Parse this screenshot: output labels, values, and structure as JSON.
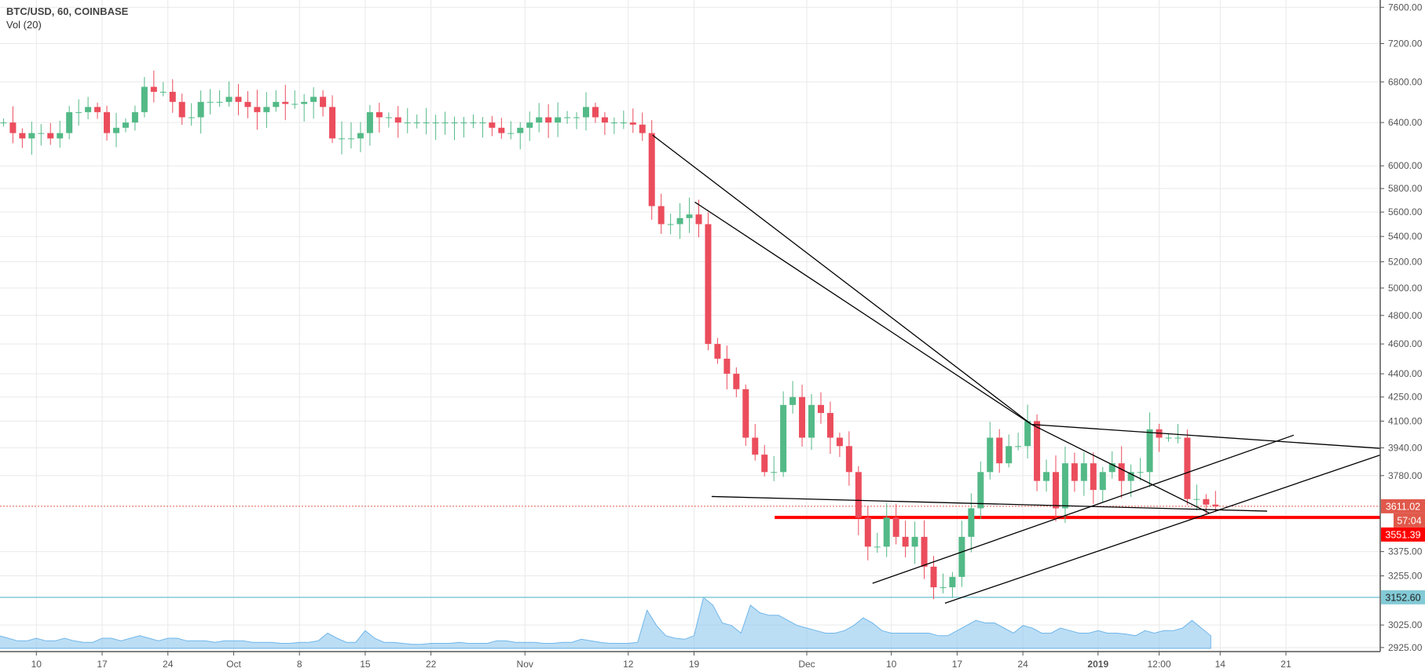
{
  "header": {
    "symbol": "BTC/USD, 60, COINBASE",
    "indicator": "Vol (20)"
  },
  "chart_data": {
    "type": "candlestick",
    "y_scale": "log",
    "grid": true,
    "ylim": [
      2925,
      7600
    ],
    "xlim": [
      "2018-09-06",
      "2019-02-04"
    ],
    "y_ticks": [
      "7600.00",
      "7200.00",
      "6800.00",
      "6400.00",
      "6000.00",
      "5800.00",
      "5600.00",
      "5400.00",
      "5200.00",
      "5000.00",
      "4800.00",
      "4600.00",
      "4400.00",
      "4250.00",
      "4100.00",
      "3940.00",
      "3780.00",
      "3375.00",
      "3255.00",
      "3025.00",
      "2925.00"
    ],
    "x_ticks": [
      {
        "label": "10",
        "date": "2018-09-10"
      },
      {
        "label": "17",
        "date": "2018-09-17"
      },
      {
        "label": "24",
        "date": "2018-09-24"
      },
      {
        "label": "Oct",
        "date": "2018-10-01"
      },
      {
        "label": "8",
        "date": "2018-10-08"
      },
      {
        "label": "15",
        "date": "2018-10-15"
      },
      {
        "label": "22",
        "date": "2018-10-22"
      },
      {
        "label": "Nov",
        "date": "2018-11-01"
      },
      {
        "label": "12",
        "date": "2018-11-12"
      },
      {
        "label": "19",
        "date": "2018-11-19"
      },
      {
        "label": "Dec",
        "date": "2018-12-01"
      },
      {
        "label": "10",
        "date": "2018-12-10"
      },
      {
        "label": "17",
        "date": "2018-12-17"
      },
      {
        "label": "24",
        "date": "2018-12-24"
      },
      {
        "label": "2019",
        "date": "2019-01-01"
      },
      {
        "label": "12:00",
        "date": "2019-01-07T12:00"
      },
      {
        "label": "14",
        "date": "2019-01-14"
      },
      {
        "label": "21",
        "date": "2019-01-21"
      }
    ],
    "series_fields": [
      "date",
      "close",
      "volume_relative"
    ],
    "series": [
      [
        "2018-09-06",
        6400,
        0.25
      ],
      [
        "2018-09-07",
        6300,
        0.2
      ],
      [
        "2018-09-08",
        6250,
        0.15
      ],
      [
        "2018-09-09",
        6300,
        0.15
      ],
      [
        "2018-09-10",
        6300,
        0.2
      ],
      [
        "2018-09-11",
        6250,
        0.15
      ],
      [
        "2018-09-12",
        6300,
        0.15
      ],
      [
        "2018-09-13",
        6500,
        0.2
      ],
      [
        "2018-09-14",
        6500,
        0.15
      ],
      [
        "2018-09-15",
        6550,
        0.12
      ],
      [
        "2018-09-16",
        6500,
        0.12
      ],
      [
        "2018-09-17",
        6300,
        0.2
      ],
      [
        "2018-09-18",
        6350,
        0.2
      ],
      [
        "2018-09-19",
        6400,
        0.15
      ],
      [
        "2018-09-20",
        6500,
        0.2
      ],
      [
        "2018-09-21",
        6750,
        0.25
      ],
      [
        "2018-09-22",
        6700,
        0.2
      ],
      [
        "2018-09-23",
        6700,
        0.15
      ],
      [
        "2018-09-24",
        6600,
        0.2
      ],
      [
        "2018-09-25",
        6450,
        0.2
      ],
      [
        "2018-09-26",
        6450,
        0.15
      ],
      [
        "2018-09-27",
        6600,
        0.15
      ],
      [
        "2018-09-28",
        6600,
        0.15
      ],
      [
        "2018-09-29",
        6600,
        0.12
      ],
      [
        "2018-09-30",
        6650,
        0.15
      ],
      [
        "2018-10-01",
        6600,
        0.15
      ],
      [
        "2018-10-02",
        6550,
        0.15
      ],
      [
        "2018-10-03",
        6500,
        0.12
      ],
      [
        "2018-10-04",
        6550,
        0.12
      ],
      [
        "2018-10-05",
        6600,
        0.12
      ],
      [
        "2018-10-06",
        6580,
        0.1
      ],
      [
        "2018-10-07",
        6580,
        0.1
      ],
      [
        "2018-10-08",
        6600,
        0.12
      ],
      [
        "2018-10-09",
        6650,
        0.12
      ],
      [
        "2018-10-10",
        6550,
        0.15
      ],
      [
        "2018-10-11",
        6250,
        0.3
      ],
      [
        "2018-10-12",
        6250,
        0.2
      ],
      [
        "2018-10-13",
        6250,
        0.12
      ],
      [
        "2018-10-14",
        6300,
        0.12
      ],
      [
        "2018-10-15",
        6500,
        0.35
      ],
      [
        "2018-10-16",
        6450,
        0.2
      ],
      [
        "2018-10-17",
        6450,
        0.12
      ],
      [
        "2018-10-18",
        6400,
        0.12
      ],
      [
        "2018-10-19",
        6400,
        0.1
      ],
      [
        "2018-10-20",
        6400,
        0.08
      ],
      [
        "2018-10-21",
        6400,
        0.08
      ],
      [
        "2018-10-22",
        6400,
        0.1
      ],
      [
        "2018-10-23",
        6400,
        0.1
      ],
      [
        "2018-10-24",
        6400,
        0.1
      ],
      [
        "2018-10-25",
        6400,
        0.12
      ],
      [
        "2018-10-26",
        6400,
        0.1
      ],
      [
        "2018-10-27",
        6400,
        0.1
      ],
      [
        "2018-10-28",
        6350,
        0.1
      ],
      [
        "2018-10-29",
        6300,
        0.15
      ],
      [
        "2018-10-30",
        6300,
        0.15
      ],
      [
        "2018-10-31",
        6350,
        0.12
      ],
      [
        "2018-11-01",
        6400,
        0.12
      ],
      [
        "2018-11-02",
        6450,
        0.12
      ],
      [
        "2018-11-03",
        6400,
        0.1
      ],
      [
        "2018-11-04",
        6450,
        0.1
      ],
      [
        "2018-11-05",
        6450,
        0.12
      ],
      [
        "2018-11-06",
        6450,
        0.12
      ],
      [
        "2018-11-07",
        6550,
        0.18
      ],
      [
        "2018-11-08",
        6450,
        0.15
      ],
      [
        "2018-11-09",
        6400,
        0.12
      ],
      [
        "2018-11-10",
        6400,
        0.1
      ],
      [
        "2018-11-11",
        6400,
        0.1
      ],
      [
        "2018-11-12",
        6380,
        0.1
      ],
      [
        "2018-11-13",
        6300,
        0.12
      ],
      [
        "2018-11-14",
        5650,
        0.75
      ],
      [
        "2018-11-15",
        5500,
        0.45
      ],
      [
        "2018-11-16",
        5500,
        0.25
      ],
      [
        "2018-11-17",
        5550,
        0.2
      ],
      [
        "2018-11-18",
        5580,
        0.18
      ],
      [
        "2018-11-19",
        5500,
        0.25
      ],
      [
        "2018-11-20",
        4600,
        1.0
      ],
      [
        "2018-11-21",
        4500,
        0.85
      ],
      [
        "2018-11-22",
        4400,
        0.5
      ],
      [
        "2018-11-23",
        4300,
        0.45
      ],
      [
        "2018-11-24",
        4000,
        0.3
      ],
      [
        "2018-11-25",
        3900,
        0.85
      ],
      [
        "2018-11-26",
        3800,
        0.7
      ],
      [
        "2018-11-27",
        3800,
        0.65
      ],
      [
        "2018-11-28",
        4200,
        0.65
      ],
      [
        "2018-11-29",
        4250,
        0.55
      ],
      [
        "2018-11-30",
        4000,
        0.45
      ],
      [
        "2018-12-01",
        4200,
        0.4
      ],
      [
        "2018-12-02",
        4150,
        0.35
      ],
      [
        "2018-12-03",
        4000,
        0.3
      ],
      [
        "2018-12-04",
        3950,
        0.3
      ],
      [
        "2018-12-05",
        3800,
        0.35
      ],
      [
        "2018-12-06",
        3550,
        0.45
      ],
      [
        "2018-12-07",
        3400,
        0.6
      ],
      [
        "2018-12-08",
        3400,
        0.5
      ],
      [
        "2018-12-09",
        3550,
        0.35
      ],
      [
        "2018-12-10",
        3450,
        0.3
      ],
      [
        "2018-12-11",
        3400,
        0.3
      ],
      [
        "2018-12-12",
        3450,
        0.3
      ],
      [
        "2018-12-13",
        3300,
        0.3
      ],
      [
        "2018-12-14",
        3200,
        0.3
      ],
      [
        "2018-12-15",
        3200,
        0.25
      ],
      [
        "2018-12-16",
        3250,
        0.25
      ],
      [
        "2018-12-17",
        3450,
        0.35
      ],
      [
        "2018-12-18",
        3600,
        0.45
      ],
      [
        "2018-12-19",
        3800,
        0.55
      ],
      [
        "2018-12-20",
        4000,
        0.5
      ],
      [
        "2018-12-21",
        3850,
        0.5
      ],
      [
        "2018-12-22",
        3950,
        0.4
      ],
      [
        "2018-12-23",
        3950,
        0.3
      ],
      [
        "2018-12-24",
        4100,
        0.45
      ],
      [
        "2018-12-25",
        3750,
        0.4
      ],
      [
        "2018-12-26",
        3800,
        0.3
      ],
      [
        "2018-12-27",
        3600,
        0.3
      ],
      [
        "2018-12-28",
        3850,
        0.4
      ],
      [
        "2018-12-29",
        3750,
        0.35
      ],
      [
        "2018-12-30",
        3850,
        0.3
      ],
      [
        "2018-12-31",
        3700,
        0.3
      ],
      [
        "2019-01-01",
        3800,
        0.35
      ],
      [
        "2019-01-02",
        3850,
        0.3
      ],
      [
        "2019-01-03",
        3750,
        0.3
      ],
      [
        "2019-01-04",
        3800,
        0.28
      ],
      [
        "2019-01-05",
        3800,
        0.25
      ],
      [
        "2019-01-06",
        4050,
        0.35
      ],
      [
        "2019-01-07",
        4000,
        0.3
      ],
      [
        "2019-01-08",
        4000,
        0.35
      ],
      [
        "2019-01-09",
        4000,
        0.35
      ],
      [
        "2019-01-10",
        3650,
        0.4
      ],
      [
        "2019-01-11",
        3650,
        0.55
      ],
      [
        "2019-01-12",
        3620,
        0.4
      ],
      [
        "2019-01-13",
        3611.02,
        0.25
      ]
    ],
    "trend_lines": [
      {
        "from": [
          "2018-11-14T14:00",
          6281
        ],
        "to": [
          "2018-12-24T22:00",
          4080
        ]
      },
      {
        "from": [
          "2018-11-19T02:00",
          5684
        ],
        "to": [
          "2018-12-24T22:00",
          4080
        ]
      },
      {
        "from": [
          "2018-12-24T22:00",
          4080
        ],
        "to": [
          "2019-01-12T19:00",
          3576
        ]
      },
      {
        "from": [
          "2018-12-24T22:00",
          4080
        ],
        "to": [
          "2019-01-31T00:00",
          3937
        ]
      },
      {
        "from": [
          "2018-12-08T00:00",
          3219
        ],
        "to": [
          "2019-01-21T20:00",
          4015
        ]
      },
      {
        "from": [
          "2018-12-15T17:00",
          3125
        ],
        "to": [
          "2019-01-31T00:00",
          3897
        ]
      },
      {
        "from": [
          "2018-11-20T21:00",
          3664
        ],
        "to": [
          "2019-01-19T00:00",
          3585
        ]
      }
    ],
    "horizontal_lines": [
      {
        "price": 3551.39,
        "from": "2018-11-27T14:00",
        "color": "#ff0000",
        "label": "3551.39"
      },
      {
        "price": 3152.6,
        "color": "#82cad6",
        "label": "3152.60"
      }
    ],
    "last_price": {
      "value": "3611.02",
      "countdown": "57:04",
      "color": "#e0594b"
    },
    "colors": {
      "up": "#53b987",
      "down": "#eb4d5c",
      "volume": "#90c8ef",
      "grid": "#e9e9e9",
      "trend": "#000000"
    }
  }
}
